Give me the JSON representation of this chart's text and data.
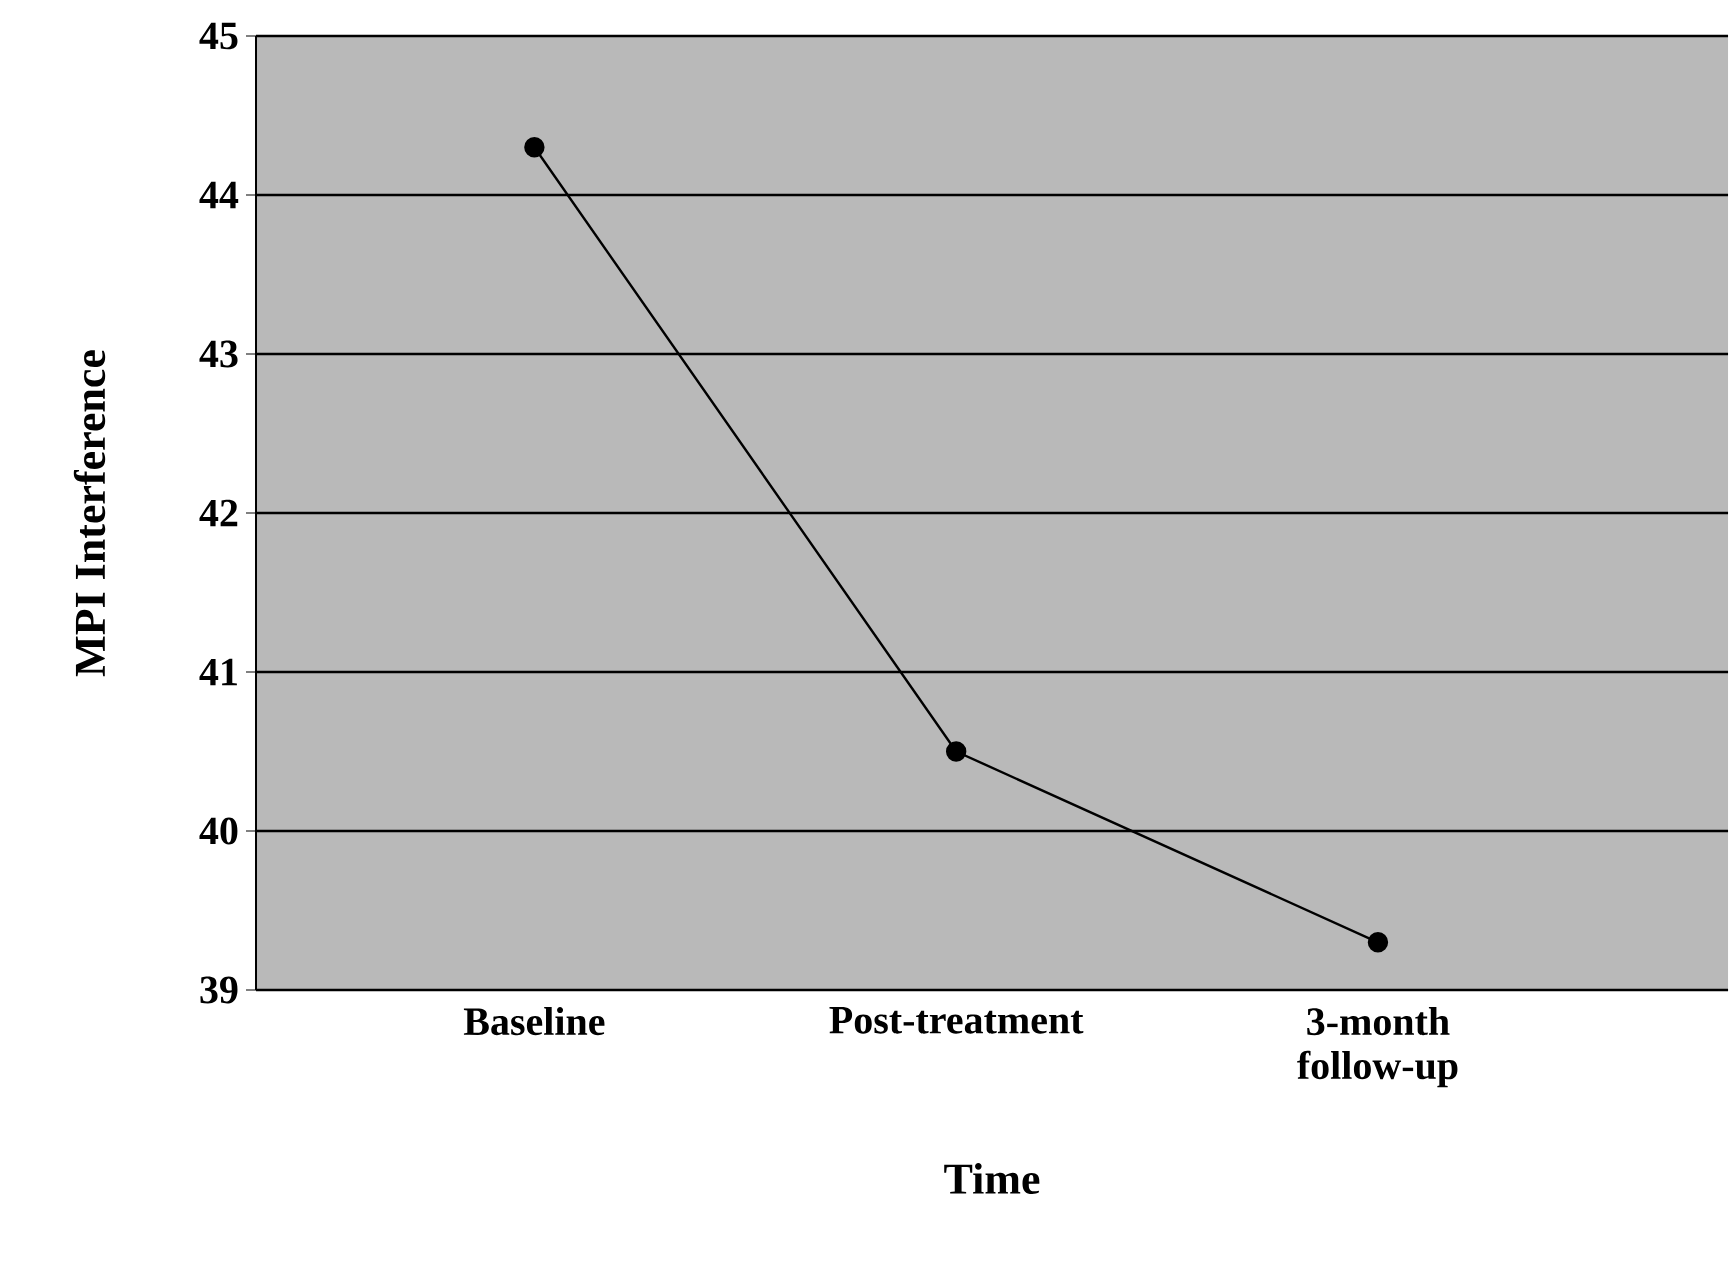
{
  "chart_data": {
    "type": "line",
    "xlabel": "Time",
    "ylabel": "MPI  Interference",
    "categories": [
      "Baseline",
      "Post-treatment",
      "3-month\nfollow-up"
    ],
    "series": [
      {
        "color": "#000000",
        "values": [
          44.3,
          40.5,
          39.3
        ]
      }
    ],
    "ylim": [
      39,
      45
    ],
    "yticks": [
      39,
      40,
      41,
      42,
      43,
      44,
      45
    ],
    "grid": "y",
    "marker": "circle",
    "line_style": "solid"
  }
}
